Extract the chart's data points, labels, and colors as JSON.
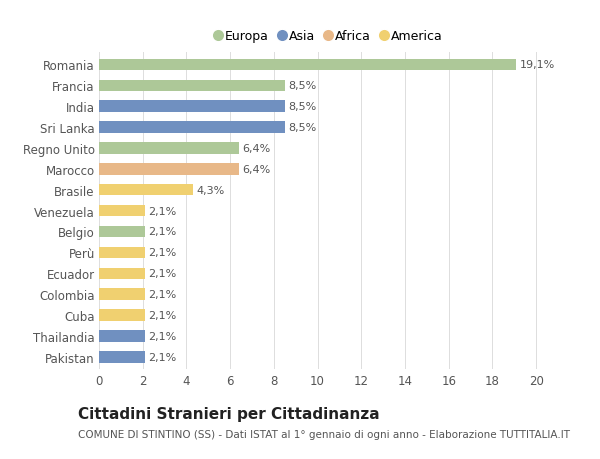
{
  "countries": [
    "Romania",
    "Francia",
    "India",
    "Sri Lanka",
    "Regno Unito",
    "Marocco",
    "Brasile",
    "Venezuela",
    "Belgio",
    "Perù",
    "Ecuador",
    "Colombia",
    "Cuba",
    "Thailandia",
    "Pakistan"
  ],
  "values": [
    19.1,
    8.5,
    8.5,
    8.5,
    6.4,
    6.4,
    4.3,
    2.1,
    2.1,
    2.1,
    2.1,
    2.1,
    2.1,
    2.1,
    2.1
  ],
  "labels": [
    "19,1%",
    "8,5%",
    "8,5%",
    "8,5%",
    "6,4%",
    "6,4%",
    "4,3%",
    "2,1%",
    "2,1%",
    "2,1%",
    "2,1%",
    "2,1%",
    "2,1%",
    "2,1%",
    "2,1%"
  ],
  "continents": [
    "Europa",
    "Europa",
    "Asia",
    "Asia",
    "Europa",
    "Africa",
    "America",
    "America",
    "Europa",
    "America",
    "America",
    "America",
    "America",
    "Asia",
    "Asia"
  ],
  "colors": {
    "Europa": "#adc898",
    "Asia": "#7090c0",
    "Africa": "#e8b888",
    "America": "#f0d070"
  },
  "legend_order": [
    "Europa",
    "Asia",
    "Africa",
    "America"
  ],
  "xlim": [
    0,
    21
  ],
  "xticks": [
    0,
    2,
    4,
    6,
    8,
    10,
    12,
    14,
    16,
    18,
    20
  ],
  "title": "Cittadini Stranieri per Cittadinanza",
  "subtitle": "COMUNE DI STINTINO (SS) - Dati ISTAT al 1° gennaio di ogni anno - Elaborazione TUTTITALIA.IT",
  "bg_color": "#ffffff",
  "bar_height": 0.55,
  "label_fontsize": 8,
  "ytick_fontsize": 8.5,
  "xtick_fontsize": 8.5,
  "title_fontsize": 11,
  "subtitle_fontsize": 7.5,
  "legend_fontsize": 9
}
